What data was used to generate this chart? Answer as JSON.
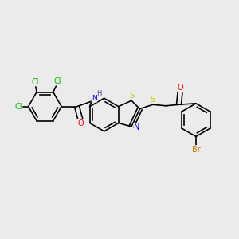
{
  "bg_color": "#ebebeb",
  "bond_color": "#000000",
  "bond_width": 1.2,
  "atom_colors": {
    "N": "#0000ff",
    "O": "#ff0000",
    "S": "#cccc00",
    "Cl": "#00bb00",
    "Br": "#cc7700",
    "C": "#000000",
    "H": "#4444aa"
  },
  "font_size": 7,
  "fig_size": [
    3.0,
    3.0
  ],
  "dpi": 100
}
